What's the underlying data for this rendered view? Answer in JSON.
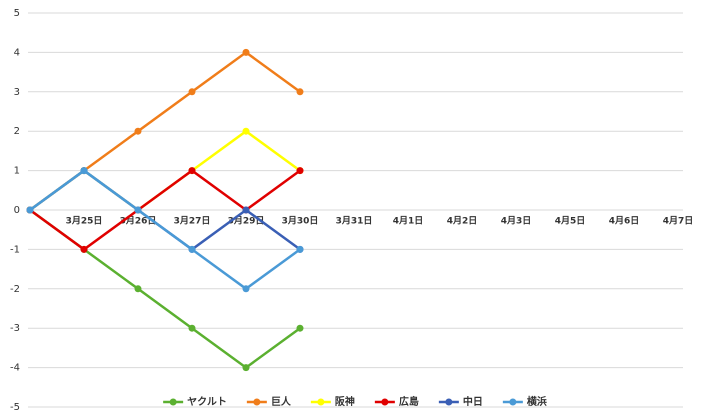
{
  "chart_data": {
    "type": "line",
    "categories": [
      null,
      "3月25日",
      "3月26日",
      "3月27日",
      "3月29日",
      "3月30日",
      "3月31日",
      "4月1日",
      "4月2日",
      "4月3日",
      "4月5日",
      "4月6日",
      "4月7日"
    ],
    "series": [
      {
        "name": "ヤクルト",
        "color": "#5bb030",
        "values": [
          0,
          -1,
          -2,
          -3,
          -4,
          -3,
          null,
          null,
          null,
          null,
          null,
          null,
          null
        ]
      },
      {
        "name": "巨人",
        "color": "#f07d1a",
        "values": [
          0,
          1,
          2,
          3,
          4,
          3,
          null,
          null,
          null,
          null,
          null,
          null,
          null
        ]
      },
      {
        "name": "阪神",
        "color": "#ffff00",
        "values": [
          0,
          1,
          0,
          1,
          2,
          1,
          null,
          null,
          null,
          null,
          null,
          null,
          null
        ]
      },
      {
        "name": "広島",
        "color": "#e00000",
        "values": [
          0,
          -1,
          0,
          1,
          0,
          1,
          null,
          null,
          null,
          null,
          null,
          null,
          null
        ]
      },
      {
        "name": "中日",
        "color": "#3a5fb5",
        "values": [
          0,
          1,
          0,
          -1,
          0,
          -1,
          null,
          null,
          null,
          null,
          null,
          null,
          null
        ]
      },
      {
        "name": "横浜",
        "color": "#4a9ad6",
        "values": [
          0,
          1,
          0,
          -1,
          -2,
          -1,
          null,
          null,
          null,
          null,
          null,
          null,
          null
        ]
      }
    ],
    "ylim": [
      -5,
      5
    ],
    "yticks": [
      -5,
      -4,
      -3,
      -2,
      -1,
      0,
      1,
      2,
      3,
      4,
      5
    ],
    "grid": true,
    "legend": "bottom"
  }
}
